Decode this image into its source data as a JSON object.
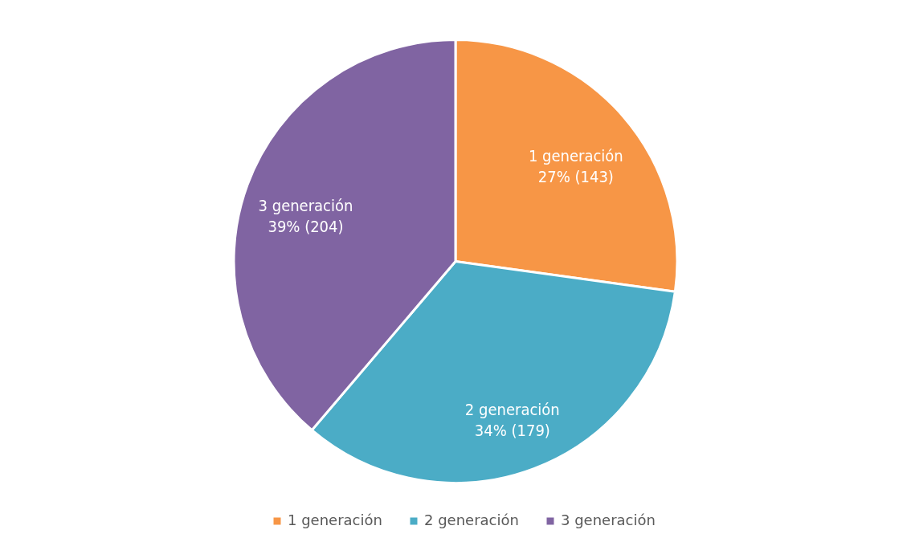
{
  "chart_data": {
    "type": "pie",
    "categories": [
      "1 generación",
      "2 generación",
      "3 generación"
    ],
    "values": [
      143,
      179,
      204
    ],
    "colors": [
      "#f79646",
      "#4bacc6",
      "#8064a2"
    ],
    "value_labels": [
      "27% (143)",
      "34% (179)",
      "39% (204)"
    ],
    "legend": "bottom"
  }
}
